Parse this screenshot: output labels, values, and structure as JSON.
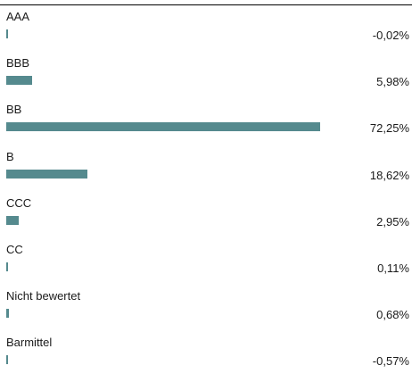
{
  "chart_data": {
    "type": "bar",
    "orientation": "horizontal",
    "categories": [
      "AAA",
      "BBB",
      "BB",
      "B",
      "CCC",
      "CC",
      "Nicht bewertet",
      "Barmittel"
    ],
    "values": [
      -0.02,
      5.98,
      72.25,
      18.62,
      2.95,
      0.11,
      0.68,
      -0.57
    ],
    "value_labels": [
      "-0,02%",
      "5,98%",
      "72,25%",
      "18,62%",
      "2,95%",
      "0,11%",
      "0,68%",
      "-0,57%"
    ],
    "title": "",
    "xlabel": "",
    "ylabel": "",
    "bar_color": "#558a8e",
    "xlim": [
      0,
      72.25
    ],
    "grid": false,
    "legend": "none"
  }
}
